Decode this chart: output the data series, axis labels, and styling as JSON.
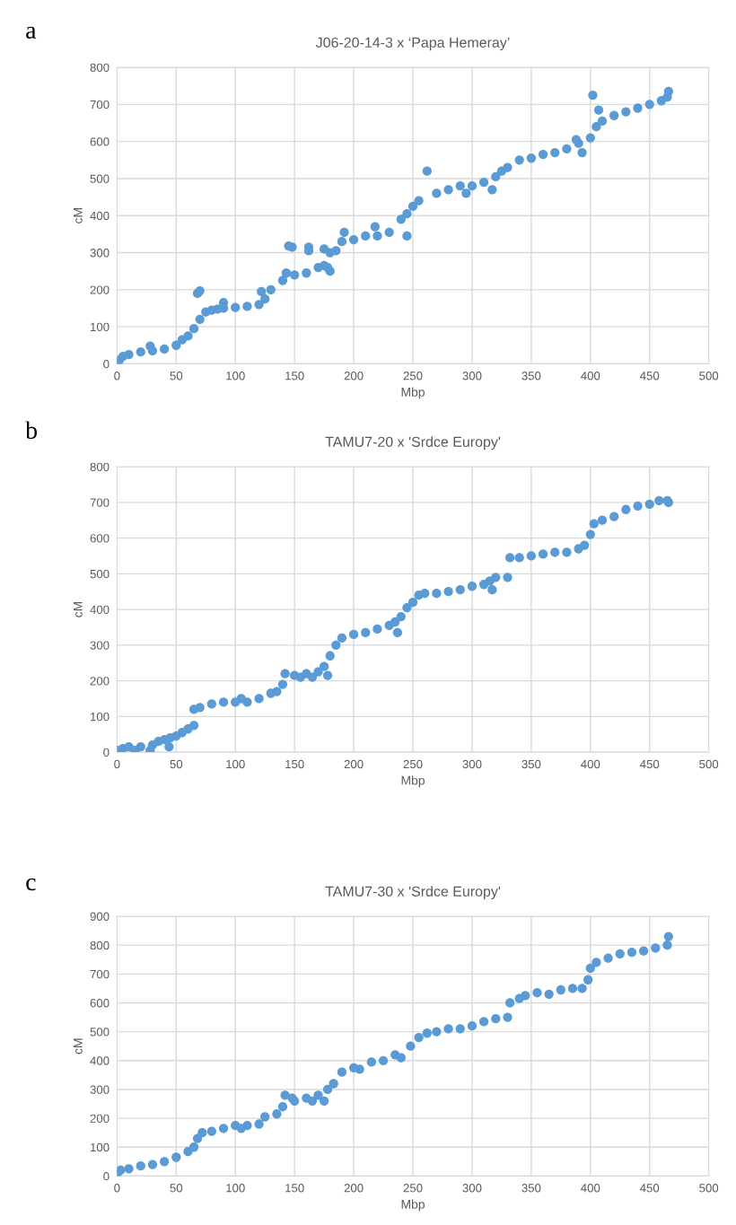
{
  "chart_data": [
    {
      "type": "scatter",
      "title": "J06-20-14-3 x ‘Papa Hemeray’",
      "xlabel": "Mbp",
      "ylabel": "cM",
      "annotations": [
        "a"
      ],
      "xlim": [
        0,
        500
      ],
      "xticks": [
        0,
        50,
        100,
        150,
        200,
        250,
        300,
        350,
        400,
        450,
        500
      ],
      "ylim": [
        0,
        800
      ],
      "yticks": [
        0,
        100,
        200,
        300,
        400,
        500,
        600,
        700,
        800
      ],
      "grid": true,
      "marker": "circle",
      "series": [
        {
          "color": "#5b9bd5",
          "x": [
            0,
            2,
            5,
            10,
            20,
            28,
            30,
            40,
            50,
            55,
            60,
            65,
            70,
            75,
            80,
            85,
            68,
            70,
            90,
            90,
            100,
            110,
            120,
            122,
            125,
            130,
            140,
            143,
            145,
            148,
            150,
            160,
            162,
            162,
            170,
            175,
            175,
            178,
            180,
            180,
            185,
            190,
            192,
            200,
            210,
            218,
            220,
            230,
            240,
            245,
            245,
            250,
            255,
            262,
            270,
            280,
            290,
            295,
            300,
            310,
            317,
            320,
            325,
            330,
            340,
            350,
            360,
            370,
            380,
            388,
            390,
            393,
            400,
            402,
            405,
            407,
            410,
            420,
            430,
            440,
            450,
            460,
            465,
            466
          ],
          "values": [
            0,
            10,
            20,
            25,
            32,
            48,
            35,
            40,
            50,
            65,
            75,
            95,
            120,
            140,
            145,
            148,
            190,
            197,
            165,
            150,
            152,
            155,
            160,
            195,
            175,
            200,
            225,
            245,
            318,
            315,
            240,
            245,
            305,
            315,
            260,
            265,
            310,
            260,
            250,
            300,
            305,
            330,
            355,
            335,
            345,
            370,
            345,
            355,
            390,
            405,
            345,
            425,
            440,
            520,
            460,
            470,
            480,
            460,
            480,
            490,
            470,
            505,
            520,
            530,
            550,
            555,
            565,
            570,
            580,
            605,
            595,
            570,
            610,
            725,
            640,
            685,
            655,
            670,
            680,
            690,
            700,
            710,
            720,
            735
          ]
        }
      ]
    },
    {
      "type": "scatter",
      "title": "TAMU7-20 x 'Srdce Europy'",
      "xlabel": "Mbp",
      "ylabel": "cM",
      "annotations": [
        "b"
      ],
      "xlim": [
        0,
        500
      ],
      "xticks": [
        0,
        50,
        100,
        150,
        200,
        250,
        300,
        350,
        400,
        450,
        500
      ],
      "ylim": [
        0,
        800
      ],
      "yticks": [
        0,
        100,
        200,
        300,
        400,
        500,
        600,
        700,
        800
      ],
      "grid": true,
      "marker": "circle",
      "series": [
        {
          "color": "#5b9bd5",
          "x": [
            0,
            5,
            10,
            15,
            20,
            28,
            30,
            35,
            40,
            44,
            45,
            50,
            55,
            60,
            65,
            65,
            70,
            80,
            90,
            100,
            105,
            110,
            120,
            130,
            135,
            140,
            142,
            150,
            155,
            160,
            165,
            170,
            175,
            178,
            180,
            185,
            190,
            200,
            210,
            220,
            230,
            235,
            237,
            240,
            245,
            250,
            255,
            260,
            270,
            280,
            290,
            300,
            310,
            315,
            317,
            320,
            330,
            332,
            340,
            350,
            360,
            370,
            380,
            390,
            395,
            400,
            403,
            410,
            420,
            430,
            440,
            450,
            458,
            465,
            466
          ],
          "values": [
            5,
            10,
            15,
            5,
            15,
            5,
            20,
            30,
            35,
            15,
            40,
            45,
            55,
            65,
            75,
            120,
            125,
            135,
            140,
            140,
            150,
            140,
            150,
            165,
            170,
            190,
            220,
            215,
            210,
            220,
            210,
            225,
            240,
            215,
            270,
            300,
            320,
            330,
            335,
            345,
            355,
            365,
            335,
            380,
            405,
            420,
            440,
            445,
            445,
            450,
            455,
            465,
            470,
            480,
            455,
            490,
            490,
            545,
            545,
            550,
            555,
            560,
            560,
            570,
            580,
            610,
            640,
            650,
            660,
            680,
            690,
            695,
            705,
            705,
            700
          ]
        }
      ]
    },
    {
      "type": "scatter",
      "title": "TAMU7-30 x 'Srdce Europy'",
      "xlabel": "Mbp",
      "ylabel": "cM",
      "annotations": [
        "c"
      ],
      "xlim": [
        0,
        500
      ],
      "xticks": [
        0,
        50,
        100,
        150,
        200,
        250,
        300,
        350,
        400,
        450,
        500
      ],
      "ylim": [
        0,
        900
      ],
      "yticks": [
        0,
        100,
        200,
        300,
        400,
        500,
        600,
        700,
        800,
        900
      ],
      "grid": true,
      "marker": "circle",
      "series": [
        {
          "color": "#5b9bd5",
          "x": [
            0,
            3,
            10,
            20,
            30,
            40,
            50,
            60,
            65,
            68,
            72,
            80,
            90,
            100,
            105,
            110,
            120,
            125,
            135,
            140,
            142,
            148,
            150,
            160,
            165,
            170,
            175,
            178,
            183,
            190,
            200,
            205,
            215,
            225,
            235,
            240,
            248,
            255,
            262,
            270,
            280,
            290,
            300,
            310,
            320,
            330,
            332,
            340,
            345,
            355,
            365,
            375,
            385,
            393,
            398,
            400,
            405,
            415,
            425,
            435,
            445,
            455,
            465,
            466
          ],
          "values": [
            5,
            20,
            25,
            35,
            40,
            50,
            65,
            85,
            100,
            130,
            150,
            155,
            165,
            175,
            165,
            175,
            180,
            205,
            215,
            240,
            280,
            270,
            260,
            270,
            260,
            280,
            260,
            300,
            320,
            360,
            375,
            370,
            395,
            400,
            420,
            410,
            450,
            480,
            495,
            500,
            510,
            510,
            520,
            535,
            545,
            550,
            600,
            615,
            625,
            635,
            630,
            645,
            650,
            650,
            680,
            720,
            740,
            755,
            770,
            775,
            780,
            790,
            800,
            830
          ]
        }
      ]
    }
  ]
}
